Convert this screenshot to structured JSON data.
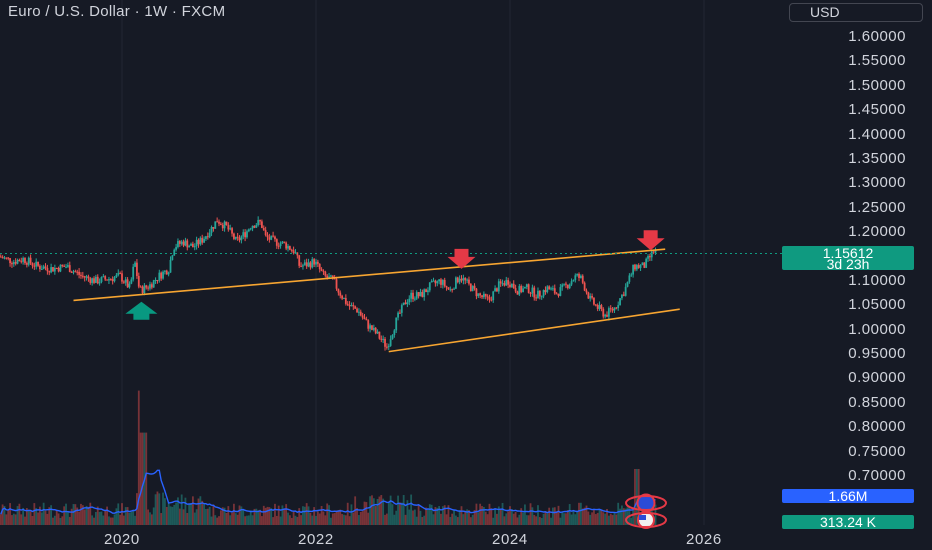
{
  "header": {
    "title": "Euro / U.S. Dollar · 1W · FXCM",
    "currency": "USD"
  },
  "price_tag": {
    "price": "1.15612",
    "countdown": "3d 23h"
  },
  "volume_tags": {
    "vol_ma": "1.66M",
    "volume": "313.24 K"
  },
  "colors": {
    "up": "#26a69a",
    "down": "#ef5350",
    "trendline": "#f7a531",
    "arrow_down": "#e53946",
    "arrow_up": "#089981",
    "volume_ma": "#2962ff",
    "background": "#161a25"
  },
  "chart_data": {
    "type": "candlestick",
    "title": "Euro / U.S. Dollar · 1W · FXCM",
    "y_axis": {
      "ticks": [
        "1.60000",
        "1.55000",
        "1.50000",
        "1.45000",
        "1.40000",
        "1.35000",
        "1.30000",
        "1.25000",
        "1.20000",
        "1.15000",
        "1.10000",
        "1.05000",
        "1.00000",
        "0.95000",
        "0.90000",
        "0.85000",
        "0.80000",
        "0.75000",
        "0.70000"
      ],
      "range": [
        0.68,
        1.62
      ]
    },
    "x_axis": {
      "ticks": [
        "2020",
        "2022",
        "2024",
        "2026"
      ],
      "range": [
        2018.75,
        2026.6
      ]
    },
    "last_price": 1.15612,
    "price_path": [
      [
        2018.75,
        1.15
      ],
      [
        2018.9,
        1.14
      ],
      [
        2019.0,
        1.145
      ],
      [
        2019.15,
        1.13
      ],
      [
        2019.3,
        1.125
      ],
      [
        2019.45,
        1.13
      ],
      [
        2019.6,
        1.11
      ],
      [
        2019.75,
        1.1
      ],
      [
        2019.9,
        1.105
      ],
      [
        2020.0,
        1.11
      ],
      [
        2020.1,
        1.085
      ],
      [
        2020.15,
        1.14
      ],
      [
        2020.2,
        1.08
      ],
      [
        2020.3,
        1.09
      ],
      [
        2020.4,
        1.11
      ],
      [
        2020.5,
        1.125
      ],
      [
        2020.55,
        1.17
      ],
      [
        2020.65,
        1.18
      ],
      [
        2020.75,
        1.17
      ],
      [
        2020.85,
        1.185
      ],
      [
        2020.95,
        1.21
      ],
      [
        2021.0,
        1.225
      ],
      [
        2021.1,
        1.21
      ],
      [
        2021.2,
        1.18
      ],
      [
        2021.3,
        1.2
      ],
      [
        2021.35,
        1.215
      ],
      [
        2021.45,
        1.22
      ],
      [
        2021.5,
        1.19
      ],
      [
        2021.6,
        1.18
      ],
      [
        2021.7,
        1.175
      ],
      [
        2021.8,
        1.16
      ],
      [
        2021.85,
        1.13
      ],
      [
        2021.95,
        1.135
      ],
      [
        2022.0,
        1.14
      ],
      [
        2022.1,
        1.11
      ],
      [
        2022.2,
        1.1
      ],
      [
        2022.25,
        1.08
      ],
      [
        2022.35,
        1.05
      ],
      [
        2022.45,
        1.04
      ],
      [
        2022.55,
        1.01
      ],
      [
        2022.65,
        0.99
      ],
      [
        2022.75,
        0.965
      ],
      [
        2022.85,
        1.02
      ],
      [
        2022.95,
        1.06
      ],
      [
        2023.0,
        1.07
      ],
      [
        2023.1,
        1.07
      ],
      [
        2023.2,
        1.09
      ],
      [
        2023.3,
        1.1
      ],
      [
        2023.4,
        1.08
      ],
      [
        2023.5,
        1.11
      ],
      [
        2023.6,
        1.09
      ],
      [
        2023.7,
        1.07
      ],
      [
        2023.8,
        1.06
      ],
      [
        2023.9,
        1.09
      ],
      [
        2024.0,
        1.1
      ],
      [
        2024.1,
        1.08
      ],
      [
        2024.2,
        1.085
      ],
      [
        2024.3,
        1.07
      ],
      [
        2024.4,
        1.085
      ],
      [
        2024.5,
        1.075
      ],
      [
        2024.6,
        1.09
      ],
      [
        2024.7,
        1.11
      ],
      [
        2024.75,
        1.105
      ],
      [
        2024.85,
        1.06
      ],
      [
        2024.95,
        1.04
      ],
      [
        2025.0,
        1.03
      ],
      [
        2025.1,
        1.045
      ],
      [
        2025.2,
        1.08
      ],
      [
        2025.3,
        1.13
      ],
      [
        2025.4,
        1.13
      ],
      [
        2025.5,
        1.16
      ]
    ],
    "trendlines": [
      {
        "name": "upper",
        "points": [
          [
            2019.5,
            1.06
          ],
          [
            2025.6,
            1.165
          ]
        ]
      },
      {
        "name": "lower",
        "points": [
          [
            2022.75,
            0.955
          ],
          [
            2025.75,
            1.042
          ]
        ]
      }
    ],
    "annotations": [
      {
        "type": "arrow-up",
        "x": 2020.2,
        "y": 1.045
      },
      {
        "type": "arrow-down",
        "x": 2023.5,
        "y": 1.137
      },
      {
        "type": "arrow-down",
        "x": 2025.45,
        "y": 1.175
      }
    ]
  }
}
